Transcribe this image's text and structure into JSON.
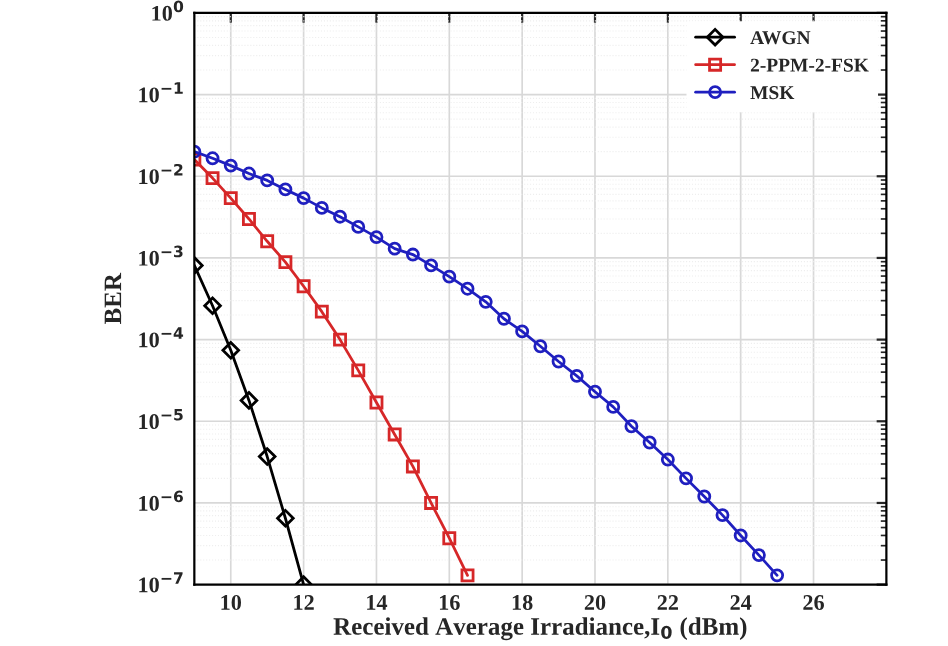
{
  "chart_data": {
    "type": "line",
    "xlabel": "Received Average Irradiance,I$_{0}$ (dBm)",
    "ylabel": "BER",
    "xlim": [
      9,
      28
    ],
    "xticks": [
      10,
      12,
      14,
      16,
      18,
      20,
      22,
      24,
      26
    ],
    "ylim": [
      1e-07,
      1
    ],
    "yticks": [
      {
        "value": 1e-07,
        "label": "10$^{−7}$"
      },
      {
        "value": 1e-06,
        "label": "10$^{−6}$"
      },
      {
        "value": 1e-05,
        "label": "10$^{−5}$"
      },
      {
        "value": 0.0001,
        "label": "10$^{−4}$"
      },
      {
        "value": 0.001,
        "label": "10$^{−3}$"
      },
      {
        "value": 0.01,
        "label": "10$^{−2}$"
      },
      {
        "value": 0.1,
        "label": "10$^{−1}$"
      },
      {
        "value": 1,
        "label": "10$^{0}$"
      }
    ],
    "log": "y",
    "grid": true,
    "legend": "top right",
    "series": [
      {
        "name": "AWGN",
        "color": "#000000",
        "marker": "diamond",
        "x": [
          9,
          9.5,
          10,
          10.5,
          11,
          11.5,
          12
        ],
        "values": [
          0.00081,
          0.00026,
          7.4e-05,
          1.8e-05,
          3.7e-06,
          6.5e-07,
          1e-07
        ]
      },
      {
        "name": "2-PPM-2-FSK",
        "color": "#d62728",
        "marker": "square",
        "x": [
          9,
          9.5,
          10,
          10.5,
          11,
          11.5,
          12,
          12.5,
          13,
          13.5,
          14,
          14.5,
          15,
          15.5,
          16,
          16.5
        ],
        "values": [
          0.016,
          0.0095,
          0.0054,
          0.003,
          0.0016,
          0.00089,
          0.00045,
          0.00022,
          0.0001,
          4.2e-05,
          1.7e-05,
          6.9e-06,
          2.8e-06,
          1e-06,
          3.7e-07,
          1.3e-07
        ]
      },
      {
        "name": "MSK",
        "color": "#1f1fbf",
        "marker": "circle",
        "x": [
          9,
          9.5,
          10,
          10.5,
          11,
          11.5,
          12,
          12.5,
          13,
          13.5,
          14,
          14.5,
          15,
          15.5,
          16,
          16.5,
          17,
          17.5,
          18,
          18.5,
          19,
          19.5,
          20,
          20.5,
          21,
          21.5,
          22,
          22.5,
          23,
          23.5,
          24,
          24.5,
          25
        ],
        "values": [
          0.02,
          0.0166,
          0.0135,
          0.0108,
          0.0089,
          0.0069,
          0.0054,
          0.0041,
          0.0032,
          0.0024,
          0.0018,
          0.0013,
          0.0011,
          0.00081,
          0.00059,
          0.00042,
          0.00029,
          0.00018,
          0.000126,
          8.3e-05,
          5.4e-05,
          3.6e-05,
          2.3e-05,
          1.5e-05,
          8.7e-06,
          5.5e-06,
          3.4e-06,
          2e-06,
          1.2e-06,
          7.1e-07,
          4e-07,
          2.3e-07,
          1.3e-07
        ]
      }
    ]
  }
}
